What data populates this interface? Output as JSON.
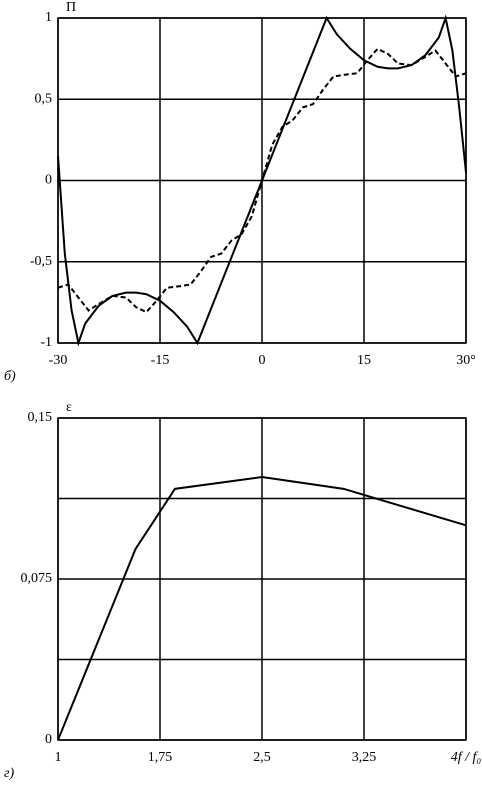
{
  "chart_data": [
    {
      "type": "line",
      "y_label": "П",
      "panel_label": "б)",
      "xlim": [
        -30,
        30
      ],
      "xticks": [
        -30,
        -15,
        0,
        15,
        {
          "value": 30,
          "label": "30°"
        }
      ],
      "ylim": [
        -1,
        1
      ],
      "yticks": [
        -1,
        {
          "value": -0.5,
          "label": "-0,5"
        },
        0,
        {
          "value": 0.5,
          "label": "0,5"
        },
        1
      ],
      "grid": true,
      "series": [
        {
          "color": "#000000",
          "style": "solid",
          "x": [
            -30,
            -29,
            -28,
            -27,
            -26,
            -24,
            -22,
            -20,
            -18.5,
            -17,
            -15,
            -13,
            -11,
            -9.5,
            9.5,
            11,
            13,
            15,
            17,
            18.5,
            20,
            22,
            24,
            26,
            27,
            28,
            29,
            30
          ],
          "values": [
            0.15,
            -0.45,
            -0.8,
            -1,
            -0.88,
            -0.77,
            -0.71,
            -0.69,
            -0.69,
            -0.7,
            -0.74,
            -0.81,
            -0.9,
            -1,
            1,
            0.9,
            0.81,
            0.74,
            0.7,
            0.69,
            0.69,
            0.71,
            0.77,
            0.88,
            1,
            0.8,
            0.45,
            0.05
          ]
        },
        {
          "color": "#000000",
          "style": "dashed",
          "x": [
            -30,
            -28.5,
            -27,
            -25.5,
            -24,
            -22,
            -20,
            -18.5,
            -17,
            -15.5,
            -14,
            -12,
            -10.5,
            -9,
            -7.5,
            -6,
            -4.5,
            -3,
            -1.5,
            0,
            1.5,
            3,
            4.5,
            6,
            7.5,
            9,
            10.5,
            12,
            14,
            15.5,
            17,
            18.5,
            20,
            22,
            24,
            25.5,
            27,
            28.5,
            30
          ],
          "values": [
            -0.66,
            -0.64,
            -0.72,
            -0.8,
            -0.76,
            -0.71,
            -0.72,
            -0.78,
            -0.81,
            -0.74,
            -0.66,
            -0.65,
            -0.64,
            -0.56,
            -0.47,
            -0.45,
            -0.37,
            -0.33,
            -0.22,
            0,
            0.22,
            0.33,
            0.37,
            0.45,
            0.47,
            0.56,
            0.64,
            0.65,
            0.66,
            0.74,
            0.81,
            0.78,
            0.72,
            0.71,
            0.76,
            0.8,
            0.72,
            0.64,
            0.66
          ]
        }
      ]
    },
    {
      "type": "line",
      "y_label": "ε",
      "panel_label": "г)",
      "xlim": [
        1,
        4
      ],
      "xticks": [
        1,
        {
          "value": 1.75,
          "label": "1,75"
        },
        {
          "value": 2.5,
          "label": "2,5"
        },
        {
          "value": 3.25,
          "label": "3,25"
        },
        {
          "value": 4,
          "label": "4f / f₀"
        }
      ],
      "ylim": [
        0,
        0.15
      ],
      "yticks": [
        0,
        {
          "value": 0.075,
          "label": "0,075"
        },
        {
          "value": 0.15,
          "label": "0,15"
        }
      ],
      "minor_yticks": [
        0.0375,
        0.1125
      ],
      "grid": true,
      "series": [
        {
          "color": "#000000",
          "style": "solid",
          "x": [
            1,
            1.57,
            1.86,
            2.5,
            3.1,
            4
          ],
          "values": [
            0,
            0.089,
            0.117,
            0.1225,
            0.117,
            0.1
          ]
        }
      ]
    }
  ]
}
